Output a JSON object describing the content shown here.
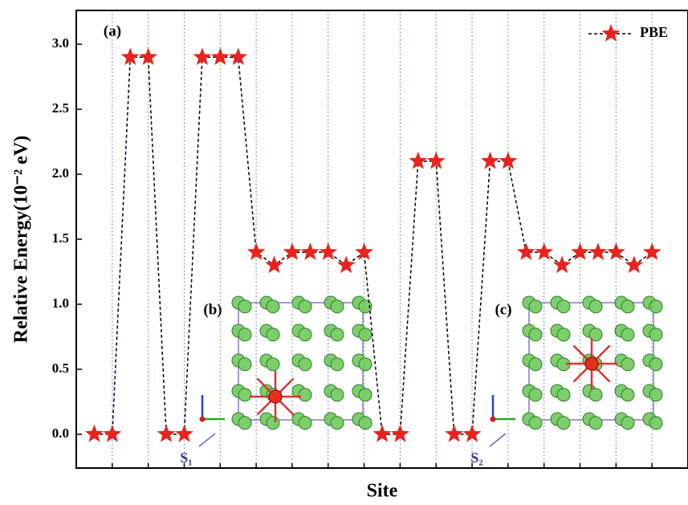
{
  "chart_data": {
    "type": "line",
    "x_label": "Site",
    "y_label": "Relative Energy(10⁻² eV)",
    "x": [
      1,
      2,
      3,
      4,
      5,
      6,
      7,
      8,
      9,
      10,
      11,
      12,
      13,
      14,
      15,
      16,
      17,
      18,
      19,
      20,
      21,
      22,
      23,
      24,
      25,
      26,
      27,
      28,
      29,
      30,
      31,
      32
    ],
    "series": [
      {
        "name": "PBE",
        "color": "#e8231f",
        "line_color": "#000000",
        "values": [
          0,
          0,
          2.9,
          2.9,
          0,
          0,
          2.9,
          2.9,
          2.9,
          1.4,
          1.3,
          1.4,
          1.4,
          1.4,
          1.3,
          1.4,
          0,
          0,
          2.1,
          2.1,
          0,
          0,
          2.1,
          2.1,
          1.4,
          1.4,
          1.3,
          1.4,
          1.4,
          1.4,
          1.3,
          1.4
        ]
      }
    ],
    "xlim": [
      0,
      34
    ],
    "xticks": [
      2,
      4,
      6,
      8,
      10,
      12,
      14,
      16,
      18,
      20,
      22,
      24,
      26,
      28,
      30,
      32
    ],
    "xtick_labels": false,
    "ylim": [
      -0.26,
      3.26
    ],
    "yticks": [
      {
        "value": 0,
        "label": "0.0"
      },
      {
        "value": 0.5,
        "label": "0.5"
      },
      {
        "value": 1,
        "label": "1.0"
      },
      {
        "value": 1.5,
        "label": "1.5"
      },
      {
        "value": 2,
        "label": "2.0"
      },
      {
        "value": 2.5,
        "label": "2.5"
      },
      {
        "value": 3,
        "label": "3.0"
      }
    ],
    "grid": "x",
    "legend": "upper right",
    "annotations": [
      "(a)",
      "(b)",
      "(c)",
      "S₁",
      "S₂"
    ]
  }
}
